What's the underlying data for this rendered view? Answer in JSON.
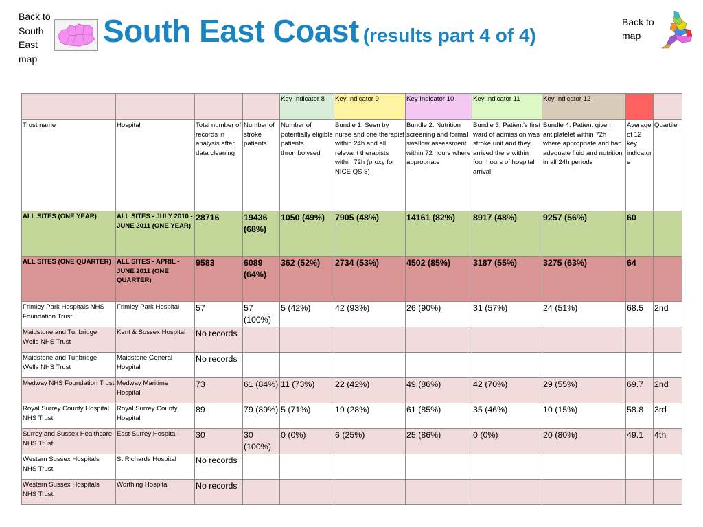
{
  "nav": {
    "back_region": "Back to South East map",
    "back_map": "Back to map"
  },
  "header": {
    "title": "South East Coast",
    "subtitle": "(results part 4 of 4)"
  },
  "table": {
    "key_indicators": [
      "Key Indicator 8",
      "Key Indicator 9",
      "Key Indicator 10",
      "Key Indicator 11",
      "Key Indicator 12"
    ],
    "columns": [
      "Trust name",
      "Hospital",
      "Total number of records in analysis after data cleaning",
      "Number of stroke patients",
      "Number of potentially eligible patients thrombolysed",
      "Bundle 1: Seen by nurse and one therapist within 24h and all relevant therapists within 72h (proxy for NICE QS 5)",
      "Bundle 2: Nutrition screening and formal swallow assessment within 72 hours where appropriate",
      "Bundle 3: Patient's first ward of admission was stroke unit and they arrived there within four hours of hospital arrival",
      "Bundle 4: Patient given antiplatelet within 72h where appropriate and had adequate fluid and nutrition in all 24h periods",
      "Average of 12 key indicators",
      "Quartile"
    ],
    "summary_rows": [
      {
        "trust": "ALL SITES (ONE YEAR)",
        "hospital": "ALL SITES - JULY 2010 - JUNE 2011 (ONE YEAR)",
        "total": "28716",
        "stroke": "19436 (68%)",
        "ki8": "1050 (49%)",
        "ki9": "7905 (48%)",
        "ki10": "14161 (82%)",
        "ki11": "8917 (48%)",
        "ki12": "9257 (56%)",
        "avg": "60",
        "quartile": ""
      },
      {
        "trust": "ALL SITES (ONE QUARTER)",
        "hospital": "ALL SITES - APRIL - JUNE 2011 (ONE QUARTER)",
        "total": "9583",
        "stroke": "6089 (64%)",
        "ki8": "362 (52%)",
        "ki9": "2734 (53%)",
        "ki10": "4502 (85%)",
        "ki11": "3187 (55%)",
        "ki12": "3275 (63%)",
        "avg": "64",
        "quartile": ""
      }
    ],
    "rows": [
      {
        "trust": "Frimley Park Hospitals NHS Foundation Trust",
        "hospital": "Frimley Park Hospital",
        "total": "57",
        "stroke": "57 (100%)",
        "ki8": "5 (42%)",
        "ki9": "42 (93%)",
        "ki10": "26 (90%)",
        "ki11": "31 (57%)",
        "ki12": "24 (51%)",
        "avg": "68.5",
        "quartile": "2nd"
      },
      {
        "trust": "Maidstone and Tunbridge Wells NHS Trust",
        "hospital": "Kent & Sussex Hospital",
        "total": "No records",
        "stroke": "",
        "ki8": "",
        "ki9": "",
        "ki10": "",
        "ki11": "",
        "ki12": "",
        "avg": "",
        "quartile": ""
      },
      {
        "trust": "Maidstone and Tunbridge Wells NHS Trust",
        "hospital": "Maidstone General Hospital",
        "total": "No records",
        "stroke": "",
        "ki8": "",
        "ki9": "",
        "ki10": "",
        "ki11": "",
        "ki12": "",
        "avg": "",
        "quartile": ""
      },
      {
        "trust": "Medway NHS Foundation Trust",
        "hospital": "Medway Maritime Hospital",
        "total": "73",
        "stroke": "61 (84%)",
        "ki8": "11 (73%)",
        "ki9": "22 (42%)",
        "ki10": "49 (86%)",
        "ki11": "42 (70%)",
        "ki12": "29 (55%)",
        "avg": "69.7",
        "quartile": "2nd"
      },
      {
        "trust": "Royal Surrey County Hospital NHS Trust",
        "hospital": "Royal Surrey County Hospital",
        "total": "89",
        "stroke": "79 (89%)",
        "ki8": "5 (71%)",
        "ki9": "19 (28%)",
        "ki10": "61 (85%)",
        "ki11": "35 (46%)",
        "ki12": "10 (15%)",
        "avg": "58.8",
        "quartile": "3rd"
      },
      {
        "trust": "Surrey and Sussex Healthcare NHS Trust",
        "hospital": "East Surrey Hospital",
        "total": "30",
        "stroke": "30 (100%)",
        "ki8": "0 (0%)",
        "ki9": "6 (25%)",
        "ki10": "25 (86%)",
        "ki11": "0 (0%)",
        "ki12": "20 (80%)",
        "avg": "49.1",
        "quartile": "4th"
      },
      {
        "trust": "Western Sussex Hospitals NHS Trust",
        "hospital": "St Richards Hospital",
        "total": "No records",
        "stroke": "",
        "ki8": "",
        "ki9": "",
        "ki10": "",
        "ki11": "",
        "ki12": "",
        "avg": "",
        "quartile": ""
      },
      {
        "trust": "Western Sussex Hospitals NHS Trust",
        "hospital": "Worthing Hospital",
        "total": "No records",
        "stroke": "",
        "ki8": "",
        "ki9": "",
        "ki10": "",
        "ki11": "",
        "ki12": "",
        "avg": "",
        "quartile": ""
      }
    ]
  },
  "colors": {
    "title": "#1a85c1",
    "key_row": "#f2dcdb",
    "one_year_row": "#c4d79b",
    "one_quarter_row": "#da9694",
    "ki8": "#d8eed8",
    "ki9": "#fff2a0",
    "ki10": "#f3c8f3",
    "ki11": "#dcf8c4",
    "ki12": "#d8ccb8",
    "avg_header": "#ff6060"
  },
  "icons": {
    "region_map": "south-east-region-map-icon",
    "england_map": "england-regions-map-icon"
  }
}
